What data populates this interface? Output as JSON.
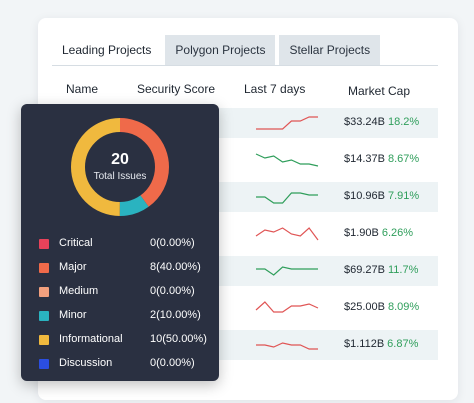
{
  "tabs": [
    {
      "label": "Leading Projects",
      "active": true
    },
    {
      "label": "Polygon Projects",
      "active": false
    },
    {
      "label": "Stellar Projects",
      "active": false
    }
  ],
  "columns": {
    "name": "Name",
    "security_score": "Security Score",
    "last_7_days": "Last 7 days",
    "market_cap": "Market Cap"
  },
  "rows": [
    {
      "market_cap": "$33.24B",
      "change": "18.2%",
      "spark": [
        0.2,
        0.2,
        0.2,
        0.2,
        0.6,
        0.6,
        0.8,
        0.8
      ],
      "color": "#e05555"
    },
    {
      "market_cap": "$14.37B",
      "change": "8.67%",
      "spark": [
        0.8,
        0.6,
        0.7,
        0.4,
        0.5,
        0.3,
        0.3,
        0.2
      ],
      "color": "#2f9e5b"
    },
    {
      "market_cap": "$10.96B",
      "change": "7.91%",
      "spark": [
        0.5,
        0.5,
        0.2,
        0.2,
        0.7,
        0.7,
        0.6,
        0.6
      ],
      "color": "#2f9e5b"
    },
    {
      "market_cap": "$1.90B",
      "change": "6.26%",
      "spark": [
        0.4,
        0.7,
        0.6,
        0.8,
        0.5,
        0.4,
        0.8,
        0.2
      ],
      "color": "#e05555"
    },
    {
      "market_cap": "$69.27B",
      "change": "11.7%",
      "spark": [
        0.6,
        0.6,
        0.3,
        0.7,
        0.6,
        0.6,
        0.6,
        0.6
      ],
      "color": "#2f9e5b"
    },
    {
      "market_cap": "$25.00B",
      "change": "8.09%",
      "spark": [
        0.4,
        0.8,
        0.3,
        0.3,
        0.6,
        0.6,
        0.7,
        0.5
      ],
      "color": "#e05555"
    },
    {
      "market_cap": "$1.112B",
      "change": "6.87%",
      "spark": [
        0.5,
        0.5,
        0.4,
        0.6,
        0.5,
        0.5,
        0.3,
        0.3
      ],
      "color": "#e05555"
    }
  ],
  "panel": {
    "total": "20",
    "total_label": "Total Issues",
    "legend": [
      {
        "label": "Critical",
        "value": "0(0.00%)",
        "fraction": 0.0,
        "color": "#e8425a"
      },
      {
        "label": "Major",
        "value": "8(40.00%)",
        "fraction": 0.4,
        "color": "#ef6a4a"
      },
      {
        "label": "Medium",
        "value": "0(0.00%)",
        "fraction": 0.0,
        "color": "#f2a07e"
      },
      {
        "label": "Minor",
        "value": "2(10.00%)",
        "fraction": 0.1,
        "color": "#2ab3c0"
      },
      {
        "label": "Informational",
        "value": "10(50.00%)",
        "fraction": 0.5,
        "color": "#f0b93e"
      },
      {
        "label": "Discussion",
        "value": "0(0.00%)",
        "fraction": 0.0,
        "color": "#2b4ee0"
      }
    ]
  }
}
